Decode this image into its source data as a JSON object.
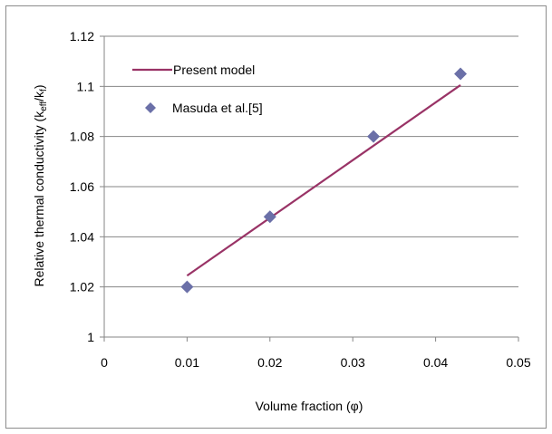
{
  "chart_data": {
    "type": "scatter",
    "xlabel": "Volume fraction (φ)",
    "ylabel": {
      "prefix": "Relative thermal conductivity (k",
      "sub1": "eff",
      "mid": "/k",
      "sub2": "f",
      "suffix": ")"
    },
    "xlim": [
      0,
      0.05
    ],
    "ylim": [
      1,
      1.12
    ],
    "xticks": [
      0,
      0.01,
      0.02,
      0.03,
      0.04,
      0.05
    ],
    "xtick_labels": [
      "0",
      "0.01",
      "0.02",
      "0.03",
      "0.04",
      "0.05"
    ],
    "yticks": [
      1,
      1.02,
      1.04,
      1.06,
      1.08,
      1.1,
      1.12
    ],
    "ytick_labels": [
      "1",
      "1.02",
      "1.04",
      "1.06",
      "1.08",
      "1.1",
      "1.12"
    ],
    "grid": "horizontal",
    "legend_position": "top-left",
    "series": [
      {
        "name": "Present model",
        "kind": "line",
        "color": "#993366",
        "x": [
          0.01,
          0.043
        ],
        "y": [
          1.0245,
          1.1005
        ]
      },
      {
        "name": "Masuda et al.[5]",
        "kind": "marker",
        "marker": "diamond",
        "color": "#6b70a8",
        "x": [
          0.01,
          0.02,
          0.0325,
          0.043
        ],
        "y": [
          1.02,
          1.048,
          1.08,
          1.105
        ]
      }
    ]
  }
}
